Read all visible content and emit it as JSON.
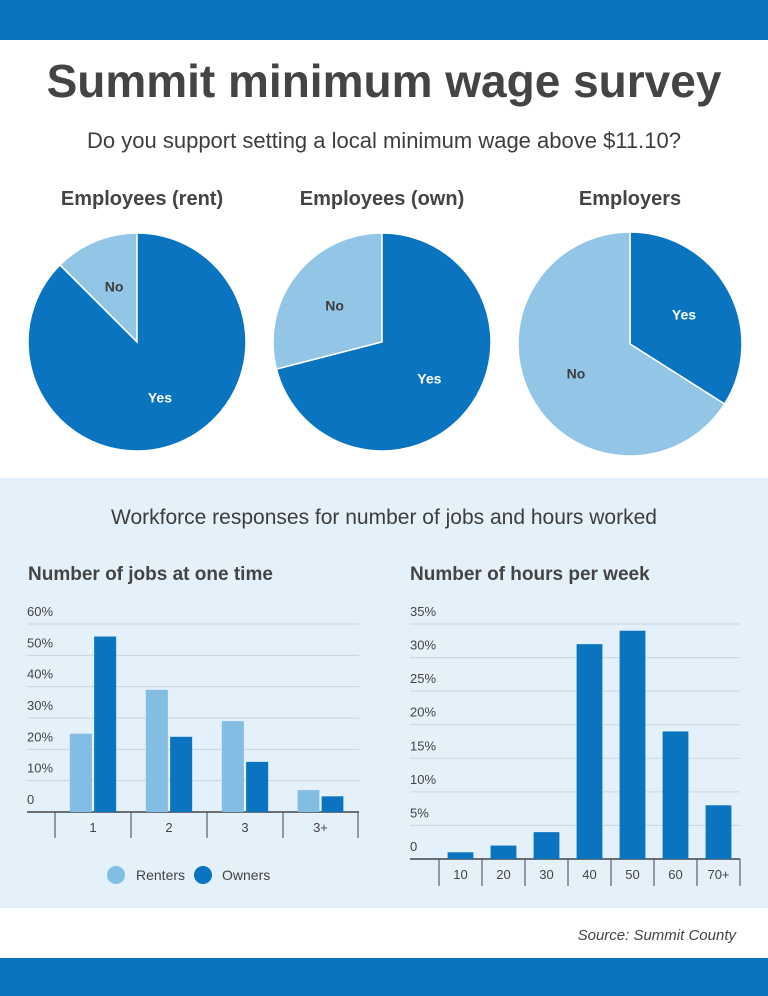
{
  "title": "Summit minimum wage survey",
  "subtitle": "Do you support setting a local minimum wage above $11.10?",
  "band_title": "Workforce responses for number of jobs and hours worked",
  "source": "Source: Summit County",
  "colors": {
    "dark": "#0a74c1",
    "light": "#93c6e6",
    "band": "#e4f0fa"
  },
  "chart_data": [
    {
      "type": "pie",
      "title": "Employees (rent)",
      "slices": [
        {
          "label": "No",
          "value": 12.5,
          "color": "#93c6e6"
        },
        {
          "label": "Yes",
          "value": 87.5,
          "color": "#0a74c1"
        }
      ]
    },
    {
      "type": "pie",
      "title": "Employees (own)",
      "slices": [
        {
          "label": "No",
          "value": 29,
          "color": "#93c6e6"
        },
        {
          "label": "Yes",
          "value": 71,
          "color": "#0a74c1"
        }
      ]
    },
    {
      "type": "pie",
      "title": "Employers",
      "slices": [
        {
          "label": "Yes",
          "value": 34,
          "color": "#0a74c1"
        },
        {
          "label": "No",
          "value": 66,
          "color": "#93c6e6"
        }
      ]
    },
    {
      "type": "bar",
      "title": "Number of jobs at one time",
      "categories": [
        "1",
        "2",
        "3",
        "3+"
      ],
      "series": [
        {
          "name": "Renters",
          "values": [
            25,
            39,
            29,
            7
          ],
          "color": "#84bde3"
        },
        {
          "name": "Owners",
          "values": [
            56,
            24,
            16,
            5
          ],
          "color": "#0a74c1"
        }
      ],
      "ylim": [
        0,
        60
      ],
      "yticks": [
        "0",
        "10%",
        "20%",
        "30%",
        "40%",
        "50%",
        "60%"
      ],
      "grid": true,
      "legend": "bottom"
    },
    {
      "type": "bar",
      "title": "Number of hours per week",
      "categories": [
        "10",
        "20",
        "30",
        "40",
        "50",
        "60",
        "70+"
      ],
      "series": [
        {
          "values": [
            1,
            2,
            4,
            32,
            34,
            19,
            8
          ],
          "color": "#0a74c1"
        }
      ],
      "ylim": [
        0,
        35
      ],
      "yticks": [
        "0",
        "5%",
        "10%",
        "15%",
        "20%",
        "25%",
        "30%",
        "35%"
      ],
      "grid": true
    }
  ]
}
